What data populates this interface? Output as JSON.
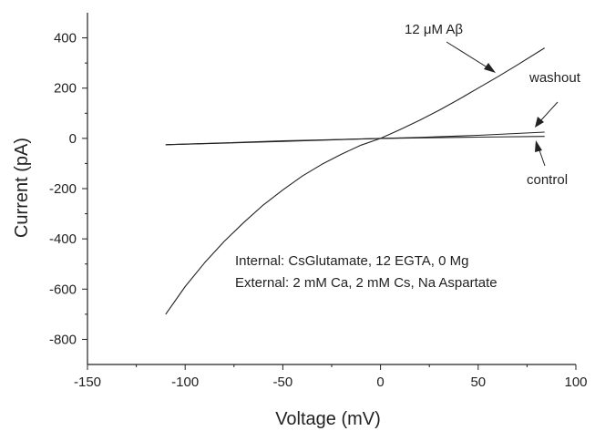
{
  "chart_data": {
    "type": "line",
    "title": "",
    "xlabel": "Voltage (mV)",
    "ylabel": "Current (pA)",
    "xlim": [
      -150,
      100
    ],
    "ylim": [
      -900,
      500
    ],
    "x_ticks": [
      -150,
      -100,
      -50,
      0,
      50,
      100
    ],
    "y_ticks": [
      400,
      200,
      0,
      -200,
      -400,
      -600,
      -800
    ],
    "grid": false,
    "legend": "none",
    "series": [
      {
        "name": "12 μM Aβ",
        "x": [
          -110,
          -100,
          -90,
          -80,
          -70,
          -60,
          -50,
          -40,
          -30,
          -20,
          -10,
          0,
          10,
          20,
          30,
          40,
          50,
          60,
          70,
          84
        ],
        "y": [
          -700,
          -590,
          -495,
          -410,
          -335,
          -265,
          -205,
          -150,
          -103,
          -63,
          -27,
          0,
          35,
          72,
          112,
          155,
          200,
          245,
          292,
          360
        ]
      },
      {
        "name": "washout",
        "x": [
          -110,
          -80,
          -50,
          -20,
          0,
          20,
          50,
          84
        ],
        "y": [
          -25,
          -18,
          -10,
          -4,
          0,
          4,
          12,
          25
        ]
      },
      {
        "name": "control",
        "x": [
          -110,
          -80,
          -50,
          -20,
          0,
          20,
          50,
          84
        ],
        "y": [
          -25,
          -19,
          -12,
          -5,
          0,
          2,
          5,
          8
        ]
      }
    ],
    "annotations": {
      "abeta_label": "12 μM Aβ",
      "washout_label": "washout",
      "control_label": "control",
      "internal_text": "Internal: CsGlutamate, 12 EGTA, 0 Mg",
      "external_text": "External: 2 mM Ca, 2 mM Cs, Na Aspartate"
    }
  }
}
